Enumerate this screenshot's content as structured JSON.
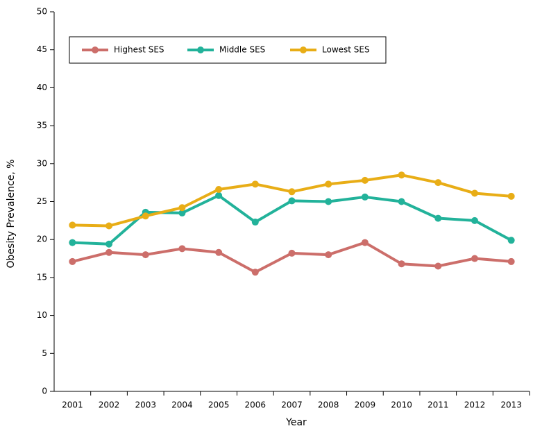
{
  "chart_data": {
    "type": "line",
    "x_label": "Year",
    "y_label": "Obesity Prevalence, %",
    "categories": [
      "2001",
      "2002",
      "2003",
      "2004",
      "2005",
      "2006",
      "2007",
      "2008",
      "2009",
      "2010",
      "2011",
      "2012",
      "2013"
    ],
    "series": [
      {
        "name": "Highest SES",
        "color": "#cc6e6a",
        "values": [
          17.1,
          18.3,
          18.0,
          18.8,
          18.3,
          15.7,
          18.2,
          18.0,
          19.6,
          16.8,
          16.5,
          17.5,
          17.1
        ]
      },
      {
        "name": "Middle SES",
        "color": "#22b29a",
        "values": [
          19.6,
          19.4,
          23.6,
          23.5,
          25.8,
          22.3,
          25.1,
          25.0,
          25.6,
          25.0,
          22.8,
          22.5,
          19.9
        ]
      },
      {
        "name": "Lowest SES",
        "color": "#e8ad16",
        "values": [
          21.9,
          21.8,
          23.1,
          24.2,
          26.6,
          27.3,
          26.3,
          27.3,
          27.8,
          28.5,
          27.5,
          26.1,
          25.7
        ]
      }
    ],
    "ylim": [
      0,
      50
    ],
    "yticks": [
      0,
      5,
      10,
      15,
      20,
      25,
      30,
      35,
      40,
      45,
      50
    ],
    "grid": false,
    "legend": "top-left"
  }
}
